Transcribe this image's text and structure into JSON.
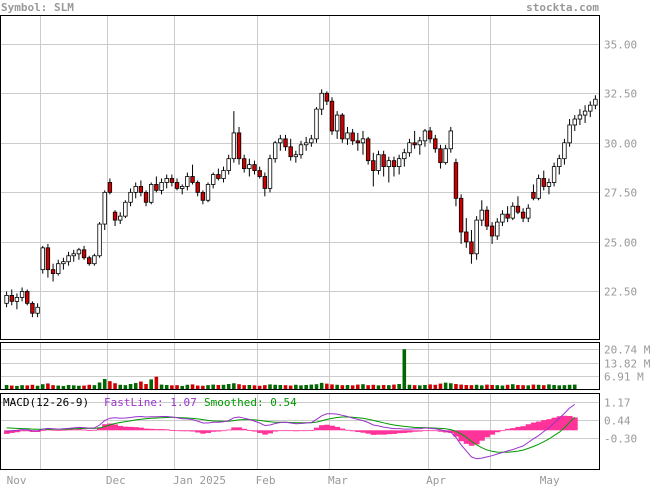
{
  "header": {
    "symbol_text": "Symbol: SLM",
    "site_text": "stockta.com"
  },
  "colors": {
    "text": "#999999",
    "grid": "#cccccc",
    "frame": "#000000",
    "up_candle": "#ffffff",
    "down_candle": "#cc0000",
    "volume_up": "#006600",
    "volume_down": "#cc0000",
    "macd_fast": "#9933cc",
    "macd_smoothed": "#009900",
    "macd_histogram": "#ff3399",
    "macd_fast_label": "#9933cc",
    "macd_smoothed_label": "#009900"
  },
  "price_panel": {
    "y_ticks": [
      "35.00",
      "32.50",
      "30.00",
      "27.50",
      "25.00",
      "22.50"
    ],
    "ylim": [
      20.1,
      36.4
    ]
  },
  "volume_panel": {
    "y_ticks": [
      "20.74 M",
      "13.82 M",
      "6.91 M"
    ],
    "ylim": [
      0,
      24.0
    ]
  },
  "macd_panel": {
    "title": "MACD(12-26-9)",
    "fastline_label": "FastLine: 1.07",
    "smoothed_label": "Smoothed: 0.54",
    "y_ticks": [
      "1.17",
      "0.44",
      "-0.30"
    ],
    "ylim": [
      -1.6,
      1.5
    ]
  },
  "x_axis": {
    "labels": [
      "Nov",
      "Dec",
      "Jan 2025",
      "Feb",
      "Mar",
      "Apr",
      "May"
    ]
  },
  "chart_data": {
    "type": "candlestick",
    "symbol": "SLM",
    "ohlc": [
      {
        "o": 21.9,
        "h": 22.5,
        "l": 21.7,
        "c": 22.3
      },
      {
        "o": 22.3,
        "h": 22.6,
        "l": 21.8,
        "c": 22.0
      },
      {
        "o": 22.0,
        "h": 22.4,
        "l": 21.6,
        "c": 22.2
      },
      {
        "o": 22.2,
        "h": 22.7,
        "l": 22.0,
        "c": 22.5
      },
      {
        "o": 22.5,
        "h": 22.6,
        "l": 21.8,
        "c": 21.9
      },
      {
        "o": 21.9,
        "h": 22.0,
        "l": 21.2,
        "c": 21.4
      },
      {
        "o": 21.4,
        "h": 21.9,
        "l": 21.2,
        "c": 21.7
      },
      {
        "o": 23.6,
        "h": 24.8,
        "l": 23.4,
        "c": 24.7
      },
      {
        "o": 24.7,
        "h": 24.9,
        "l": 23.2,
        "c": 23.6
      },
      {
        "o": 23.6,
        "h": 23.9,
        "l": 23.0,
        "c": 23.4
      },
      {
        "o": 23.4,
        "h": 24.1,
        "l": 23.3,
        "c": 23.9
      },
      {
        "o": 23.9,
        "h": 24.2,
        "l": 23.6,
        "c": 24.0
      },
      {
        "o": 24.0,
        "h": 24.5,
        "l": 23.8,
        "c": 24.3
      },
      {
        "o": 24.3,
        "h": 24.6,
        "l": 24.0,
        "c": 24.4
      },
      {
        "o": 24.4,
        "h": 24.7,
        "l": 24.1,
        "c": 24.6
      },
      {
        "o": 24.6,
        "h": 24.8,
        "l": 24.1,
        "c": 24.2
      },
      {
        "o": 24.2,
        "h": 24.3,
        "l": 23.8,
        "c": 23.9
      },
      {
        "o": 23.9,
        "h": 24.4,
        "l": 23.8,
        "c": 24.3
      },
      {
        "o": 24.3,
        "h": 26.0,
        "l": 24.2,
        "c": 25.9
      },
      {
        "o": 25.9,
        "h": 27.6,
        "l": 25.6,
        "c": 27.5
      },
      {
        "o": 28.0,
        "h": 28.2,
        "l": 27.4,
        "c": 27.5
      },
      {
        "o": 26.5,
        "h": 26.6,
        "l": 25.8,
        "c": 26.1
      },
      {
        "o": 26.1,
        "h": 26.5,
        "l": 25.9,
        "c": 26.3
      },
      {
        "o": 26.3,
        "h": 27.1,
        "l": 26.2,
        "c": 27.0
      },
      {
        "o": 27.0,
        "h": 27.7,
        "l": 26.8,
        "c": 27.5
      },
      {
        "o": 27.5,
        "h": 28.0,
        "l": 27.2,
        "c": 27.8
      },
      {
        "o": 27.8,
        "h": 28.1,
        "l": 27.3,
        "c": 27.5
      },
      {
        "o": 27.5,
        "h": 27.6,
        "l": 26.8,
        "c": 27.0
      },
      {
        "o": 27.0,
        "h": 28.0,
        "l": 26.9,
        "c": 27.9
      },
      {
        "o": 27.9,
        "h": 28.3,
        "l": 27.5,
        "c": 27.6
      },
      {
        "o": 27.6,
        "h": 28.2,
        "l": 27.4,
        "c": 28.0
      },
      {
        "o": 28.0,
        "h": 28.4,
        "l": 27.7,
        "c": 28.2
      },
      {
        "o": 28.2,
        "h": 28.4,
        "l": 27.8,
        "c": 28.0
      },
      {
        "o": 28.0,
        "h": 28.2,
        "l": 27.6,
        "c": 27.7
      },
      {
        "o": 27.7,
        "h": 27.9,
        "l": 27.4,
        "c": 27.8
      },
      {
        "o": 27.8,
        "h": 28.5,
        "l": 27.6,
        "c": 28.3
      },
      {
        "o": 28.3,
        "h": 28.9,
        "l": 27.9,
        "c": 28.0
      },
      {
        "o": 28.0,
        "h": 28.1,
        "l": 27.3,
        "c": 27.5
      },
      {
        "o": 27.5,
        "h": 27.6,
        "l": 26.9,
        "c": 27.1
      },
      {
        "o": 27.1,
        "h": 28.0,
        "l": 27.0,
        "c": 27.9
      },
      {
        "o": 27.9,
        "h": 28.5,
        "l": 27.7,
        "c": 28.4
      },
      {
        "o": 28.4,
        "h": 28.7,
        "l": 28.1,
        "c": 28.2
      },
      {
        "o": 28.2,
        "h": 28.8,
        "l": 28.0,
        "c": 28.6
      },
      {
        "o": 28.6,
        "h": 29.4,
        "l": 28.4,
        "c": 29.2
      },
      {
        "o": 29.2,
        "h": 31.6,
        "l": 29.0,
        "c": 30.5
      },
      {
        "o": 30.5,
        "h": 30.8,
        "l": 28.9,
        "c": 29.2
      },
      {
        "o": 29.2,
        "h": 29.4,
        "l": 28.5,
        "c": 28.7
      },
      {
        "o": 28.7,
        "h": 29.2,
        "l": 28.3,
        "c": 28.9
      },
      {
        "o": 28.9,
        "h": 29.1,
        "l": 28.4,
        "c": 28.6
      },
      {
        "o": 28.6,
        "h": 28.8,
        "l": 28.2,
        "c": 28.3
      },
      {
        "o": 28.3,
        "h": 28.5,
        "l": 27.3,
        "c": 27.7
      },
      {
        "o": 27.7,
        "h": 29.4,
        "l": 27.5,
        "c": 29.2
      },
      {
        "o": 29.2,
        "h": 30.1,
        "l": 29.0,
        "c": 30.0
      },
      {
        "o": 30.0,
        "h": 30.4,
        "l": 29.6,
        "c": 30.2
      },
      {
        "o": 30.2,
        "h": 30.4,
        "l": 29.6,
        "c": 29.8
      },
      {
        "o": 29.8,
        "h": 30.2,
        "l": 29.1,
        "c": 29.3
      },
      {
        "o": 29.3,
        "h": 29.6,
        "l": 29.0,
        "c": 29.4
      },
      {
        "o": 29.4,
        "h": 30.1,
        "l": 29.2,
        "c": 29.9
      },
      {
        "o": 29.9,
        "h": 30.3,
        "l": 29.6,
        "c": 30.0
      },
      {
        "o": 30.0,
        "h": 30.4,
        "l": 29.8,
        "c": 30.2
      },
      {
        "o": 30.2,
        "h": 31.8,
        "l": 30.0,
        "c": 31.7
      },
      {
        "o": 31.7,
        "h": 32.7,
        "l": 31.4,
        "c": 32.5
      },
      {
        "o": 32.5,
        "h": 32.6,
        "l": 31.9,
        "c": 32.1
      },
      {
        "o": 32.1,
        "h": 32.3,
        "l": 30.4,
        "c": 30.6
      },
      {
        "o": 30.6,
        "h": 31.6,
        "l": 30.2,
        "c": 31.4
      },
      {
        "o": 31.4,
        "h": 31.5,
        "l": 30.0,
        "c": 30.2
      },
      {
        "o": 30.2,
        "h": 30.8,
        "l": 29.9,
        "c": 30.5
      },
      {
        "o": 30.5,
        "h": 30.7,
        "l": 29.9,
        "c": 30.1
      },
      {
        "o": 30.1,
        "h": 30.5,
        "l": 29.6,
        "c": 30.0
      },
      {
        "o": 30.0,
        "h": 30.6,
        "l": 29.4,
        "c": 30.2
      },
      {
        "o": 30.2,
        "h": 30.3,
        "l": 28.9,
        "c": 29.1
      },
      {
        "o": 29.1,
        "h": 29.5,
        "l": 27.8,
        "c": 28.6
      },
      {
        "o": 28.6,
        "h": 29.6,
        "l": 28.4,
        "c": 29.4
      },
      {
        "o": 29.4,
        "h": 29.6,
        "l": 28.3,
        "c": 28.8
      },
      {
        "o": 28.8,
        "h": 29.3,
        "l": 28.0,
        "c": 29.1
      },
      {
        "o": 29.1,
        "h": 29.3,
        "l": 28.3,
        "c": 28.8
      },
      {
        "o": 28.8,
        "h": 29.4,
        "l": 28.4,
        "c": 29.2
      },
      {
        "o": 29.2,
        "h": 29.7,
        "l": 28.8,
        "c": 29.5
      },
      {
        "o": 29.5,
        "h": 30.2,
        "l": 29.3,
        "c": 30.0
      },
      {
        "o": 30.0,
        "h": 30.6,
        "l": 29.7,
        "c": 29.9
      },
      {
        "o": 29.9,
        "h": 30.3,
        "l": 29.4,
        "c": 30.1
      },
      {
        "o": 30.1,
        "h": 30.7,
        "l": 29.8,
        "c": 30.6
      },
      {
        "o": 30.6,
        "h": 30.8,
        "l": 30.0,
        "c": 30.2
      },
      {
        "o": 30.2,
        "h": 30.4,
        "l": 29.5,
        "c": 29.7
      },
      {
        "o": 29.7,
        "h": 29.9,
        "l": 28.7,
        "c": 29.0
      },
      {
        "o": 29.0,
        "h": 29.9,
        "l": 28.9,
        "c": 29.7
      },
      {
        "o": 29.7,
        "h": 30.8,
        "l": 29.5,
        "c": 30.6
      },
      {
        "o": 29.0,
        "h": 29.2,
        "l": 26.8,
        "c": 27.2
      },
      {
        "o": 27.2,
        "h": 27.4,
        "l": 24.9,
        "c": 25.5
      },
      {
        "o": 25.5,
        "h": 26.2,
        "l": 24.7,
        "c": 25.0
      },
      {
        "o": 25.0,
        "h": 25.6,
        "l": 23.9,
        "c": 24.4
      },
      {
        "o": 24.4,
        "h": 26.3,
        "l": 24.1,
        "c": 26.1
      },
      {
        "o": 26.1,
        "h": 27.1,
        "l": 25.8,
        "c": 26.6
      },
      {
        "o": 26.6,
        "h": 26.8,
        "l": 25.6,
        "c": 25.8
      },
      {
        "o": 25.8,
        "h": 26.0,
        "l": 24.9,
        "c": 25.3
      },
      {
        "o": 25.3,
        "h": 26.2,
        "l": 25.1,
        "c": 26.0
      },
      {
        "o": 26.0,
        "h": 26.6,
        "l": 25.8,
        "c": 26.4
      },
      {
        "o": 26.4,
        "h": 26.8,
        "l": 26.0,
        "c": 26.2
      },
      {
        "o": 26.2,
        "h": 27.0,
        "l": 26.1,
        "c": 26.8
      },
      {
        "o": 26.8,
        "h": 27.3,
        "l": 26.4,
        "c": 26.5
      },
      {
        "o": 26.5,
        "h": 26.7,
        "l": 26.0,
        "c": 26.2
      },
      {
        "o": 26.2,
        "h": 26.9,
        "l": 26.0,
        "c": 26.7
      },
      {
        "o": 27.5,
        "h": 27.9,
        "l": 27.1,
        "c": 27.2
      },
      {
        "o": 27.2,
        "h": 28.4,
        "l": 27.1,
        "c": 28.2
      },
      {
        "o": 28.2,
        "h": 28.6,
        "l": 27.6,
        "c": 27.8
      },
      {
        "o": 27.8,
        "h": 28.2,
        "l": 27.4,
        "c": 28.0
      },
      {
        "o": 28.0,
        "h": 29.0,
        "l": 27.8,
        "c": 28.8
      },
      {
        "o": 28.8,
        "h": 29.4,
        "l": 28.4,
        "c": 29.2
      },
      {
        "o": 29.2,
        "h": 30.2,
        "l": 28.9,
        "c": 30.0
      },
      {
        "o": 30.0,
        "h": 31.2,
        "l": 29.8,
        "c": 30.9
      },
      {
        "o": 30.9,
        "h": 31.4,
        "l": 30.6,
        "c": 31.2
      },
      {
        "o": 31.2,
        "h": 31.7,
        "l": 30.9,
        "c": 31.4
      },
      {
        "o": 31.4,
        "h": 31.9,
        "l": 31.0,
        "c": 31.6
      },
      {
        "o": 31.6,
        "h": 32.1,
        "l": 31.3,
        "c": 31.9
      },
      {
        "o": 31.9,
        "h": 32.4,
        "l": 31.7,
        "c": 32.2
      }
    ],
    "volume_millions": [
      2.1,
      1.8,
      1.6,
      2.0,
      1.9,
      2.2,
      1.7,
      2.5,
      2.9,
      2.0,
      1.8,
      1.6,
      2.1,
      1.9,
      1.7,
      1.8,
      2.2,
      2.0,
      3.4,
      5.2,
      4.1,
      3.0,
      2.2,
      2.0,
      2.6,
      3.1,
      3.9,
      2.6,
      5.0,
      6.4,
      2.3,
      2.1,
      1.9,
      2.0,
      1.6,
      2.2,
      2.4,
      1.8,
      1.7,
      2.0,
      2.3,
      2.1,
      2.2,
      2.6,
      3.0,
      2.5,
      2.0,
      2.1,
      1.9,
      1.7,
      2.0,
      2.4,
      2.2,
      2.1,
      2.0,
      1.8,
      2.2,
      1.9,
      2.1,
      2.3,
      2.5,
      3.2,
      2.8,
      2.4,
      2.2,
      2.0,
      2.1,
      1.9,
      2.3,
      2.5,
      2.0,
      2.2,
      1.9,
      2.1,
      2.0,
      2.3,
      2.6,
      20.74,
      2.2,
      2.0,
      1.9,
      2.1,
      2.4,
      2.2,
      2.8,
      3.3,
      3.0,
      2.6,
      2.3,
      2.1,
      2.0,
      2.2,
      1.9,
      2.3,
      2.1,
      2.0,
      1.8,
      2.2,
      2.5,
      2.1,
      2.0,
      1.9,
      2.3,
      2.2,
      2.0,
      2.4,
      2.1,
      1.9,
      2.0,
      2.2,
      2.3
    ],
    "macd_fast": [
      -0.05,
      -0.02,
      0.0,
      0.03,
      0.02,
      -0.02,
      -0.03,
      0.05,
      0.08,
      0.06,
      0.05,
      0.06,
      0.08,
      0.1,
      0.12,
      0.11,
      0.09,
      0.1,
      0.22,
      0.4,
      0.5,
      0.52,
      0.5,
      0.51,
      0.53,
      0.56,
      0.57,
      0.55,
      0.56,
      0.56,
      0.57,
      0.57,
      0.55,
      0.52,
      0.48,
      0.47,
      0.44,
      0.38,
      0.3,
      0.3,
      0.33,
      0.33,
      0.35,
      0.4,
      0.52,
      0.55,
      0.5,
      0.45,
      0.38,
      0.3,
      0.2,
      0.22,
      0.28,
      0.32,
      0.33,
      0.3,
      0.27,
      0.28,
      0.3,
      0.32,
      0.45,
      0.6,
      0.68,
      0.68,
      0.67,
      0.62,
      0.57,
      0.5,
      0.45,
      0.4,
      0.32,
      0.22,
      0.18,
      0.13,
      0.1,
      0.07,
      0.07,
      0.05,
      0.05,
      0.06,
      0.06,
      0.1,
      0.08,
      0.06,
      0.02,
      -0.03,
      -0.08,
      -0.3,
      -0.6,
      -0.85,
      -1.1,
      -1.18,
      -1.15,
      -1.1,
      -1.05,
      -0.98,
      -0.92,
      -0.85,
      -0.8,
      -0.72,
      -0.65,
      -0.5,
      -0.35,
      -0.22,
      -0.05,
      0.1,
      0.3,
      0.5,
      0.7,
      0.92,
      1.07
    ],
    "macd_smoothed": [
      0.1,
      0.09,
      0.08,
      0.07,
      0.06,
      0.05,
      0.04,
      0.04,
      0.04,
      0.04,
      0.04,
      0.04,
      0.05,
      0.06,
      0.07,
      0.08,
      0.08,
      0.08,
      0.1,
      0.15,
      0.22,
      0.28,
      0.32,
      0.36,
      0.39,
      0.43,
      0.46,
      0.48,
      0.5,
      0.51,
      0.52,
      0.53,
      0.54,
      0.53,
      0.52,
      0.51,
      0.49,
      0.47,
      0.44,
      0.41,
      0.39,
      0.38,
      0.37,
      0.37,
      0.4,
      0.43,
      0.44,
      0.44,
      0.43,
      0.41,
      0.38,
      0.35,
      0.33,
      0.33,
      0.33,
      0.32,
      0.31,
      0.31,
      0.31,
      0.31,
      0.34,
      0.39,
      0.45,
      0.49,
      0.53,
      0.55,
      0.55,
      0.54,
      0.52,
      0.5,
      0.46,
      0.41,
      0.36,
      0.31,
      0.26,
      0.22,
      0.19,
      0.16,
      0.14,
      0.12,
      0.11,
      0.11,
      0.1,
      0.09,
      0.08,
      0.06,
      0.03,
      -0.04,
      -0.15,
      -0.29,
      -0.46,
      -0.6,
      -0.72,
      -0.81,
      -0.87,
      -0.9,
      -0.91,
      -0.91,
      -0.89,
      -0.86,
      -0.82,
      -0.75,
      -0.67,
      -0.58,
      -0.47,
      -0.36,
      -0.22,
      -0.08,
      0.1,
      0.33,
      0.54
    ],
    "x_labels": [
      "Nov",
      "Dec",
      "Jan 2025",
      "Feb",
      "Mar",
      "Apr",
      "May"
    ]
  }
}
